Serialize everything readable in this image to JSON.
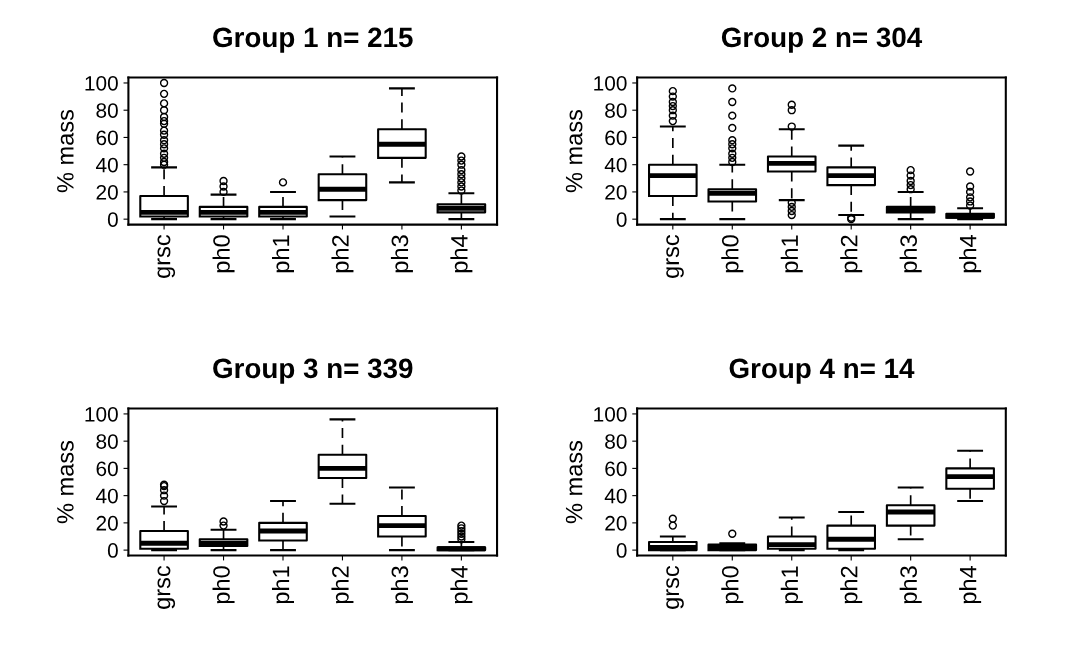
{
  "chart_data": [
    {
      "type": "box",
      "title": "Group 1 n= 215",
      "ylabel": "% mass",
      "categories": [
        "grsc",
        "ph0",
        "ph1",
        "ph2",
        "ph3",
        "ph4"
      ],
      "ylim": [
        -4,
        104
      ],
      "yticks": [
        0,
        20,
        40,
        60,
        80,
        100
      ],
      "grid": false,
      "boxes": [
        {
          "low": 0,
          "q1": 2,
          "median": 5,
          "q3": 17,
          "high": 38,
          "outliers": [
            40,
            42,
            45,
            48,
            52,
            55,
            58,
            62,
            65,
            70,
            72,
            75,
            80,
            85,
            92,
            100
          ]
        },
        {
          "low": 0,
          "q1": 2,
          "median": 5,
          "q3": 9,
          "high": 18,
          "outliers": [
            20,
            24,
            28
          ]
        },
        {
          "low": 0,
          "q1": 2,
          "median": 5,
          "q3": 9,
          "high": 20,
          "outliers": [
            27
          ]
        },
        {
          "low": 2,
          "q1": 14,
          "median": 22,
          "q3": 33,
          "high": 46
        },
        {
          "low": 27,
          "q1": 45,
          "median": 55,
          "q3": 66,
          "high": 96
        },
        {
          "low": 0,
          "q1": 5,
          "median": 8,
          "q3": 11,
          "high": 19,
          "outliers": [
            21,
            24,
            27,
            30,
            33,
            36,
            40,
            43,
            46
          ]
        }
      ]
    },
    {
      "type": "box",
      "title": "Group 2 n= 304",
      "ylabel": "% mass",
      "categories": [
        "grsc",
        "ph0",
        "ph1",
        "ph2",
        "ph3",
        "ph4"
      ],
      "ylim": [
        -4,
        104
      ],
      "yticks": [
        0,
        20,
        40,
        60,
        80,
        100
      ],
      "grid": false,
      "boxes": [
        {
          "low": 0,
          "q1": 17,
          "median": 32,
          "q3": 40,
          "high": 68,
          "outliers": [
            72,
            76,
            80,
            83,
            86,
            90,
            94
          ]
        },
        {
          "low": 0,
          "q1": 13,
          "median": 19,
          "q3": 22,
          "high": 40,
          "outliers": [
            42,
            45,
            48,
            52,
            55,
            58,
            67,
            76,
            86,
            96
          ]
        },
        {
          "low": 14,
          "q1": 35,
          "median": 41,
          "q3": 46,
          "high": 66,
          "outliers": [
            3,
            6,
            9,
            12,
            68,
            80,
            84
          ]
        },
        {
          "low": 3,
          "q1": 25,
          "median": 32,
          "q3": 38,
          "high": 54,
          "outliers": [
            0,
            1
          ]
        },
        {
          "low": 0,
          "q1": 5,
          "median": 7,
          "q3": 9,
          "high": 20,
          "outliers": [
            22,
            25,
            28,
            32,
            36
          ]
        },
        {
          "low": 0,
          "q1": 1,
          "median": 2,
          "q3": 4,
          "high": 8,
          "outliers": [
            10,
            13,
            16,
            20,
            24,
            35
          ]
        }
      ]
    },
    {
      "type": "box",
      "title": "Group 3 n= 339",
      "ylabel": "% mass",
      "categories": [
        "grsc",
        "ph0",
        "ph1",
        "ph2",
        "ph3",
        "ph4"
      ],
      "ylim": [
        -4,
        104
      ],
      "yticks": [
        0,
        20,
        40,
        60,
        80,
        100
      ],
      "grid": false,
      "boxes": [
        {
          "low": 0,
          "q1": 1,
          "median": 5,
          "q3": 14,
          "high": 32,
          "outliers": [
            36,
            40,
            44,
            47,
            48
          ]
        },
        {
          "low": 0,
          "q1": 3,
          "median": 5,
          "q3": 8,
          "high": 15,
          "outliers": [
            18,
            21
          ]
        },
        {
          "low": 0,
          "q1": 7,
          "median": 14,
          "q3": 20,
          "high": 36
        },
        {
          "low": 34,
          "q1": 53,
          "median": 60,
          "q3": 70,
          "high": 96
        },
        {
          "low": 0,
          "q1": 10,
          "median": 18,
          "q3": 25,
          "high": 46
        },
        {
          "low": 0,
          "q1": 0,
          "median": 1,
          "q3": 2,
          "high": 6,
          "outliers": [
            8,
            10,
            12,
            14,
            16,
            18
          ]
        }
      ]
    },
    {
      "type": "box",
      "title": "Group 4 n= 14",
      "ylabel": "% mass",
      "categories": [
        "grsc",
        "ph0",
        "ph1",
        "ph2",
        "ph3",
        "ph4"
      ],
      "ylim": [
        -4,
        104
      ],
      "yticks": [
        0,
        20,
        40,
        60,
        80,
        100
      ],
      "grid": false,
      "boxes": [
        {
          "low": 0,
          "q1": 0,
          "median": 2,
          "q3": 6,
          "high": 10,
          "outliers": [
            18,
            23
          ]
        },
        {
          "low": 0,
          "q1": 0,
          "median": 2,
          "q3": 4,
          "high": 5,
          "outliers": [
            12
          ]
        },
        {
          "low": 0,
          "q1": 1,
          "median": 4,
          "q3": 10,
          "high": 24
        },
        {
          "low": 0,
          "q1": 1,
          "median": 8,
          "q3": 18,
          "high": 28
        },
        {
          "low": 8,
          "q1": 18,
          "median": 28,
          "q3": 33,
          "high": 46
        },
        {
          "low": 36,
          "q1": 45,
          "median": 54,
          "q3": 60,
          "high": 73
        }
      ]
    }
  ]
}
